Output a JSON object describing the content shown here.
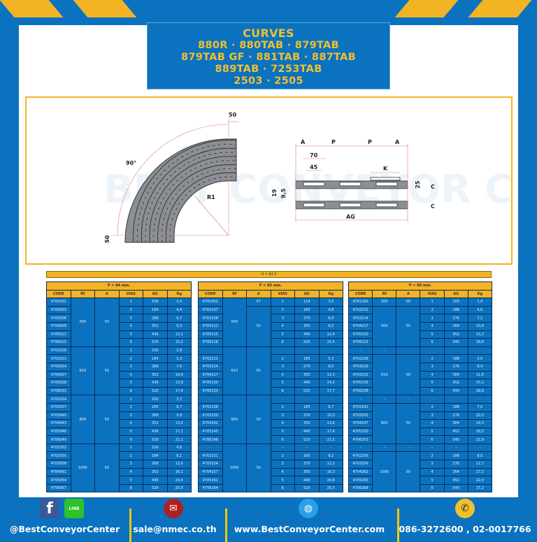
{
  "colors": {
    "background": "#0b72bf",
    "accent": "#f2b325",
    "cell": "#0b72bf"
  },
  "title": {
    "lines": [
      "CURVES",
      "880R · 880TAB · 879TAB",
      "879TAB GF · 881TAB · 887TAB",
      "889TAB · 7253TAB",
      "2503 · 2505"
    ]
  },
  "watermark": {
    "text": "BEST CONVEYOR CENTER"
  },
  "diagram": {
    "curve_width": "50",
    "angle": "90°",
    "radius": "R1",
    "straight": "50",
    "dims": {
      "a1": "A",
      "p1": "P",
      "p2": "P",
      "a2": "A",
      "w70": "70",
      "w45": "45",
      "k": "K",
      "h19": "19",
      "h95": "9,5",
      "h25": "25",
      "c1": "C",
      "c2": "C",
      "ag": "AG"
    }
  },
  "height_label": "H = 82,5",
  "columns": [
    "CODE",
    "Rf",
    "A",
    "VIAS",
    "AG",
    "Kg"
  ],
  "tables": [
    {
      "pitch": "P = 84 mm.",
      "rows": [
        [
          "4701001",
          "500",
          "50",
          "1",
          "100",
          "2,4"
        ],
        [
          "4702003",
          null,
          null,
          "2",
          "184",
          "4,4"
        ],
        [
          "4703006",
          null,
          null,
          "3",
          "268",
          "6,7"
        ],
        [
          "4704009",
          null,
          null,
          "4",
          "352",
          "9,3"
        ],
        [
          "4705012",
          null,
          null,
          "5",
          "436",
          "12,1"
        ],
        [
          "4706015",
          null,
          null,
          "6",
          "520",
          "15,2"
        ],
        [
          "4701018",
          "610",
          "50",
          "1",
          "100",
          "2,9"
        ],
        [
          "4702021",
          null,
          null,
          "2",
          "184",
          "5,3"
        ],
        [
          "4703024",
          null,
          null,
          "3",
          "268",
          "7,9"
        ],
        [
          "4704027",
          null,
          null,
          "4",
          "352",
          "10,8"
        ],
        [
          "4705028",
          null,
          null,
          "5",
          "436",
          "13,9"
        ],
        [
          "4706031",
          null,
          null,
          "6",
          "520",
          "17,4"
        ],
        [
          "4701034",
          "800",
          "50",
          "1",
          "100",
          "3,7"
        ],
        [
          "4702037",
          null,
          null,
          "2",
          "184",
          "6,7"
        ],
        [
          "4703040",
          null,
          null,
          "3",
          "268",
          "9,9"
        ],
        [
          "4704043",
          null,
          null,
          "4",
          "352",
          "13,4"
        ],
        [
          "4705046",
          null,
          null,
          "5",
          "436",
          "17,1"
        ],
        [
          "4706049",
          null,
          null,
          "6",
          "520",
          "21,1"
        ],
        [
          "4701052",
          "1000",
          "50",
          "1",
          "100",
          "4,6"
        ],
        [
          "4702055",
          null,
          null,
          "2",
          "184",
          "8,1"
        ],
        [
          "4703058",
          null,
          null,
          "3",
          "268",
          "12,0"
        ],
        [
          "4704061",
          null,
          null,
          "4",
          "352",
          "16,1"
        ],
        [
          "4705064",
          null,
          null,
          "5",
          "436",
          "20,4"
        ],
        [
          "4706067",
          null,
          null,
          "6",
          "520",
          "25,0"
        ]
      ]
    },
    {
      "pitch": "P = 85 mm.",
      "rows": [
        [
          "4701002",
          "500",
          "57",
          "1",
          "114",
          "3,0"
        ],
        [
          "4702107",
          null,
          "50",
          "2",
          "185",
          "4,8"
        ],
        [
          "4703109",
          null,
          null,
          "3",
          "270",
          "6,9"
        ],
        [
          "4704112",
          null,
          null,
          "4",
          "355",
          "9,5"
        ],
        [
          "4705115",
          null,
          null,
          "5",
          "440",
          "12,4"
        ],
        [
          "4706118",
          null,
          null,
          "6",
          "525",
          "15,5"
        ],
        [
          "-",
          "610",
          "50",
          "-",
          "-",
          "-"
        ],
        [
          "4702121",
          null,
          null,
          "2",
          "185",
          "5,3"
        ],
        [
          "4703124",
          null,
          null,
          "3",
          "270",
          "8,0"
        ],
        [
          "4704127",
          null,
          null,
          "4",
          "355",
          "11,0"
        ],
        [
          "4705130",
          null,
          null,
          "5",
          "440",
          "14,2"
        ],
        [
          "4706133",
          null,
          null,
          "6",
          "525",
          "17,7"
        ],
        [
          "-",
          "800",
          "50",
          "-",
          "-",
          "-"
        ],
        [
          "4702136",
          null,
          null,
          "2",
          "185",
          "6,7"
        ],
        [
          "4703139",
          null,
          null,
          "3",
          "270",
          "10,0"
        ],
        [
          "4704142",
          null,
          null,
          "4",
          "355",
          "13,6"
        ],
        [
          "4705145",
          null,
          null,
          "5",
          "440",
          "17,4"
        ],
        [
          "4706148",
          null,
          null,
          "6",
          "525",
          "21,5"
        ],
        [
          "-",
          "1000",
          "50",
          "-",
          "-",
          "-"
        ],
        [
          "4702151",
          null,
          null,
          "2",
          "185",
          "8,2"
        ],
        [
          "4703154",
          null,
          null,
          "3",
          "270",
          "12,2"
        ],
        [
          "4704157",
          null,
          null,
          "4",
          "355",
          "16,3"
        ],
        [
          "4705161",
          null,
          null,
          "5",
          "440",
          "20,8"
        ],
        [
          "4706164",
          null,
          null,
          "6",
          "525",
          "25,5"
        ]
      ]
    },
    {
      "pitch": "P = 88 mm.",
      "rows": [
        [
          "4701200",
          "200",
          "50",
          "1",
          "100",
          "1,4"
        ],
        [
          "4702211",
          "500",
          "50",
          "2",
          "188",
          "4,6"
        ],
        [
          "4703214",
          null,
          null,
          "3",
          "276",
          "7,2"
        ],
        [
          "4704217",
          null,
          null,
          "4",
          "364",
          "10,0"
        ],
        [
          "4705220",
          null,
          null,
          "5",
          "452",
          "13,2"
        ],
        [
          "4706223",
          null,
          null,
          "6",
          "540",
          "16,6"
        ],
        [
          "-",
          "-",
          "-",
          "-",
          "-",
          "-"
        ],
        [
          "4702226",
          "610",
          "50",
          "2",
          "188",
          "5,5"
        ],
        [
          "4703229",
          null,
          null,
          "3",
          "276",
          "8,4"
        ],
        [
          "4704232",
          null,
          null,
          "4",
          "364",
          "11,6"
        ],
        [
          "4705235",
          null,
          null,
          "5",
          "452",
          "15,1"
        ],
        [
          "4706238",
          null,
          null,
          "6",
          "540",
          "18,9"
        ],
        [
          "-",
          "-",
          "-",
          "-",
          "-",
          "-"
        ],
        [
          "4702241",
          "800",
          "50",
          "2",
          "188",
          "7,0"
        ],
        [
          "4703243",
          null,
          null,
          "3",
          "276",
          "10,5"
        ],
        [
          "4704247",
          null,
          null,
          "4",
          "364",
          "14,3"
        ],
        [
          "4705250",
          null,
          null,
          "5",
          "452",
          "18,5"
        ],
        [
          "4706253",
          null,
          null,
          "6",
          "540",
          "22,9"
        ],
        [
          "-",
          "-",
          "-",
          "-",
          "-",
          "-"
        ],
        [
          "4702256",
          "1000",
          "50",
          "2",
          "188",
          "8,5"
        ],
        [
          "4703259",
          null,
          null,
          "3",
          "276",
          "12,7"
        ],
        [
          "4704262",
          null,
          null,
          "4",
          "364",
          "17,2"
        ],
        [
          "4705265",
          null,
          null,
          "5",
          "452",
          "22,0"
        ],
        [
          "4706268",
          null,
          null,
          "6",
          "540",
          "27,2"
        ]
      ]
    }
  ],
  "footer": {
    "social": "@BestConveyorCenter",
    "email": "sale@nmec.co.th",
    "website": "www.BestConveyorCenter.com",
    "phone": "086-3272600 , 02-0017766",
    "line_label": "LINE",
    "icons": [
      "facebook-icon",
      "line-icon",
      "email-icon",
      "globe-icon",
      "phone-icon"
    ]
  }
}
